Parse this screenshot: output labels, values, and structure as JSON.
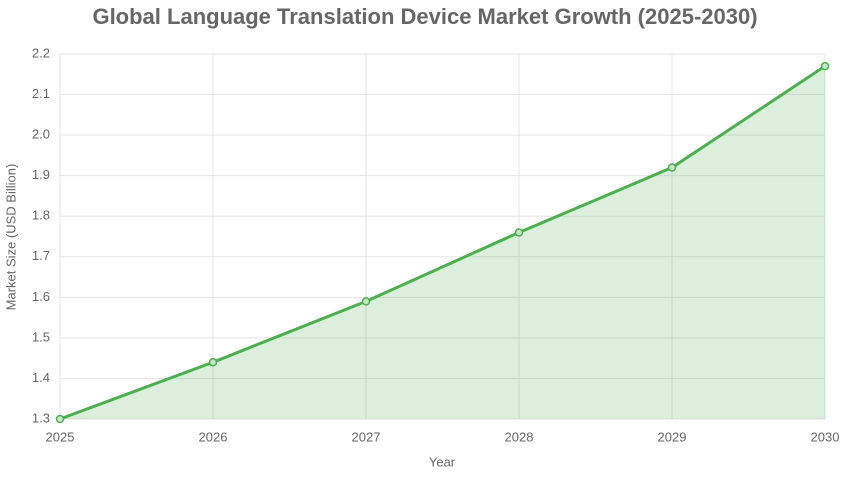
{
  "chart_data": {
    "type": "line",
    "title": "Global Language Translation Device Market Growth (2025-2030)",
    "x_label": "Year",
    "y_label": "Market Size (USD Billion)",
    "categories": [
      "2025",
      "2026",
      "2027",
      "2028",
      "2029",
      "2030"
    ],
    "series": [
      {
        "name": "Market Size (USD Billion)",
        "color": "#4caf50",
        "values": [
          1.3,
          1.44,
          1.59,
          1.76,
          1.92,
          2.17
        ]
      }
    ],
    "fill": true,
    "ylim": [
      1.3,
      2.2
    ],
    "yticks": [
      1.3,
      1.4,
      1.5,
      1.6,
      1.7,
      1.8,
      1.9,
      {
        "value": 2,
        "label": "2.0"
      },
      2.1,
      2.2
    ],
    "grid": true
  }
}
